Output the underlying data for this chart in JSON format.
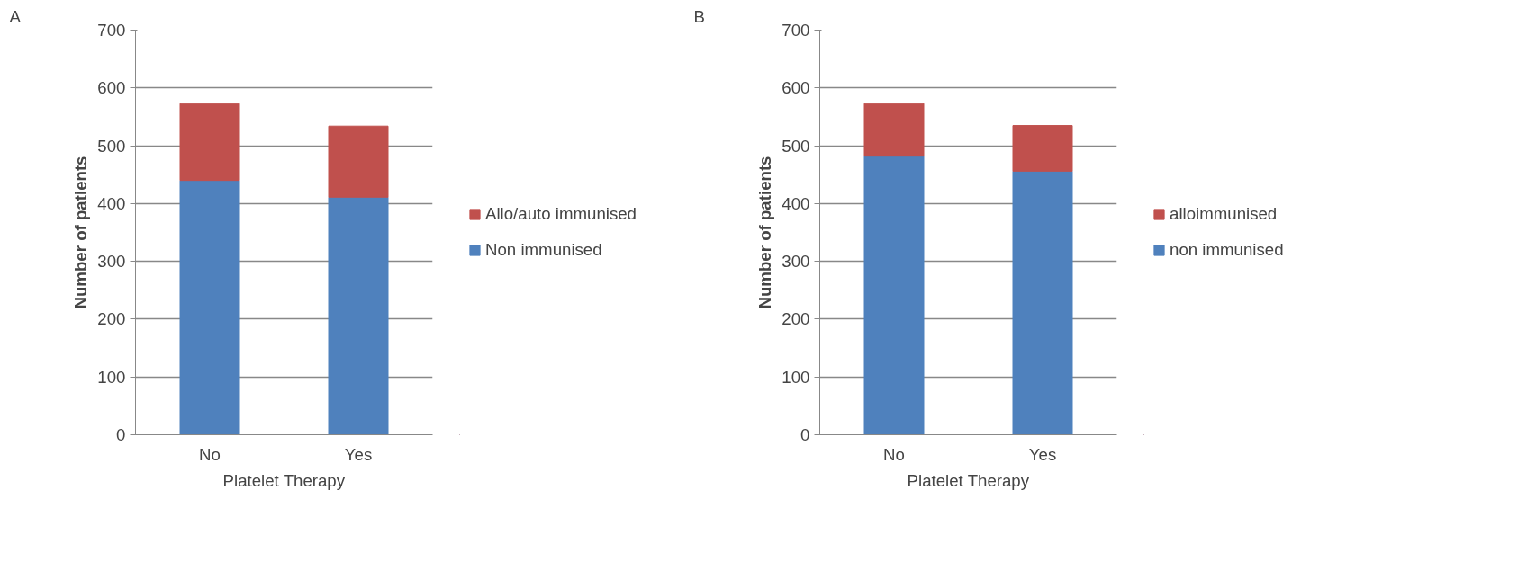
{
  "chart_data": [
    {
      "type": "bar",
      "stacked": true,
      "annotations": [
        "A"
      ],
      "xlabel": "Platelet Therapy",
      "ylabel": "Number of patients",
      "categories": [
        "No",
        "Yes"
      ],
      "ylim": [
        0,
        700
      ],
      "yticks": [
        0,
        100,
        200,
        300,
        400,
        500,
        600,
        700
      ],
      "grid": "y",
      "legend": "right",
      "series": [
        {
          "name": "Non immunised",
          "color": "#4f81bd",
          "values": [
            440,
            411
          ]
        },
        {
          "name": "Allo/auto immunised",
          "color": "#c0504d",
          "values": [
            133,
            123
          ]
        }
      ]
    },
    {
      "type": "bar",
      "stacked": true,
      "annotations": [
        "B"
      ],
      "xlabel": "Platelet Therapy",
      "ylabel": "Number of patients",
      "categories": [
        "No",
        "Yes"
      ],
      "ylim": [
        0,
        700
      ],
      "yticks": [
        0,
        100,
        200,
        300,
        400,
        500,
        600,
        700
      ],
      "grid": "y",
      "legend": "right",
      "series": [
        {
          "name": "non immunised",
          "color": "#4f81bd",
          "values": [
            482,
            456
          ]
        },
        {
          "name": "alloimmunised",
          "color": "#c0504d",
          "values": [
            91,
            79
          ]
        }
      ]
    }
  ]
}
